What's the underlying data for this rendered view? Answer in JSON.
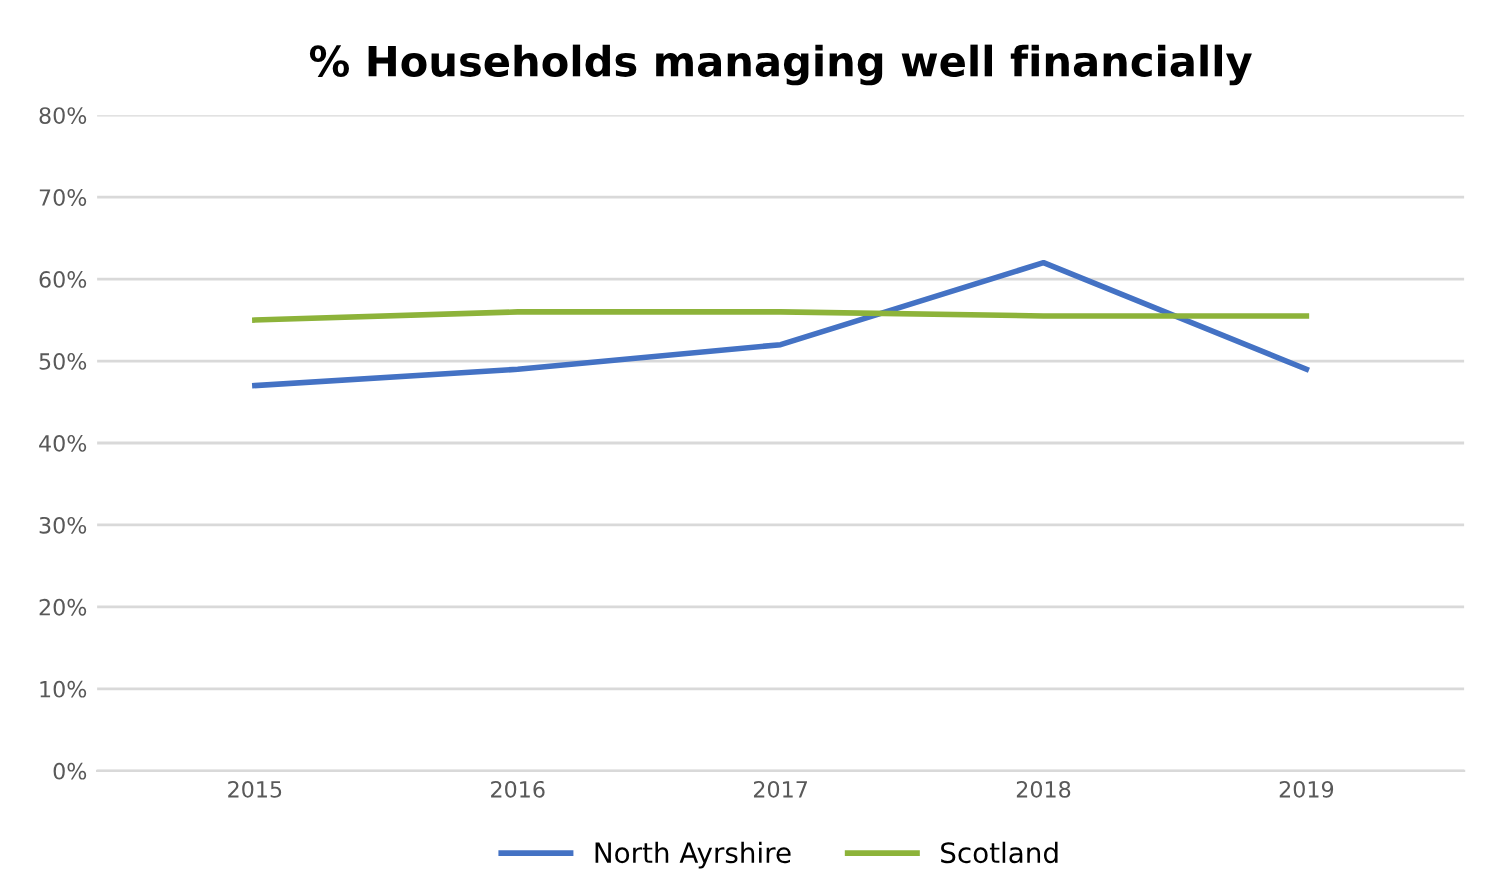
{
  "chart_data": {
    "type": "line",
    "title": "% Households managing well financially",
    "categories": [
      "2015",
      "2016",
      "2017",
      "2018",
      "2019"
    ],
    "series": [
      {
        "name": "North Ayrshire",
        "color": "#4472c4",
        "values": [
          47,
          49,
          52,
          62,
          49
        ]
      },
      {
        "name": "Scotland",
        "color": "#8db33a",
        "values": [
          55,
          56,
          56,
          55.5,
          55.5
        ]
      }
    ],
    "ylim": [
      0,
      80
    ],
    "yticks": [
      {
        "value": 0,
        "label": "0%"
      },
      {
        "value": 10,
        "label": "10%"
      },
      {
        "value": 20,
        "label": "20%"
      },
      {
        "value": 30,
        "label": "30%"
      },
      {
        "value": 40,
        "label": "40%"
      },
      {
        "value": 50,
        "label": "50%"
      },
      {
        "value": 60,
        "label": "60%"
      },
      {
        "value": 70,
        "label": "70%"
      },
      {
        "value": 80,
        "label": "80%"
      }
    ],
    "grid": "y",
    "legend": "bottom"
  }
}
